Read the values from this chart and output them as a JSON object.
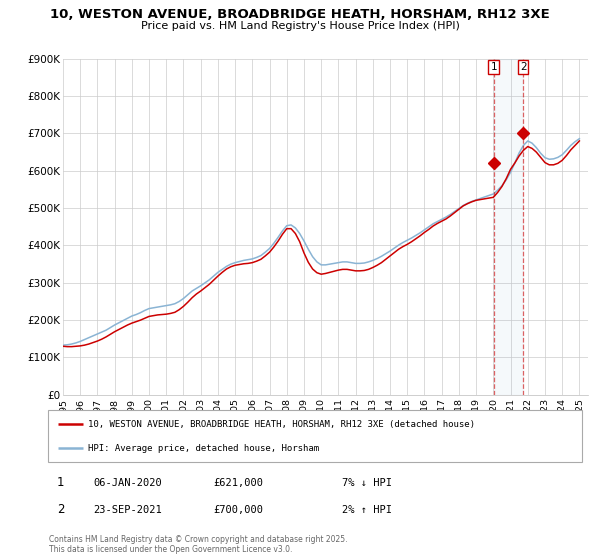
{
  "title1": "10, WESTON AVENUE, BROADBRIDGE HEATH, HORSHAM, RH12 3XE",
  "title2": "Price paid vs. HM Land Registry's House Price Index (HPI)",
  "legend_label_red": "10, WESTON AVENUE, BROADBRIDGE HEATH, HORSHAM, RH12 3XE (detached house)",
  "legend_label_blue": "HPI: Average price, detached house, Horsham",
  "ylim": [
    0,
    900000
  ],
  "xlim_start": 1995.0,
  "xlim_end": 2025.5,
  "ytick_values": [
    0,
    100000,
    200000,
    300000,
    400000,
    500000,
    600000,
    700000,
    800000,
    900000
  ],
  "ytick_labels": [
    "£0",
    "£100K",
    "£200K",
    "£300K",
    "£400K",
    "£500K",
    "£600K",
    "£700K",
    "£800K",
    "£900K"
  ],
  "xtick_values": [
    1995,
    1996,
    1997,
    1998,
    1999,
    2000,
    2001,
    2002,
    2003,
    2004,
    2005,
    2006,
    2007,
    2008,
    2009,
    2010,
    2011,
    2012,
    2013,
    2014,
    2015,
    2016,
    2017,
    2018,
    2019,
    2020,
    2021,
    2022,
    2023,
    2024,
    2025
  ],
  "marker1_x": 2020.019,
  "marker1_y": 621000,
  "marker1_label": "1",
  "marker1_date": "06-JAN-2020",
  "marker1_price": "£621,000",
  "marker1_hpi": "7% ↓ HPI",
  "marker2_x": 2021.728,
  "marker2_y": 700000,
  "marker2_label": "2",
  "marker2_date": "23-SEP-2021",
  "marker2_price": "£700,000",
  "marker2_hpi": "2% ↑ HPI",
  "red_color": "#cc0000",
  "blue_color": "#8ab4d4",
  "background_color": "#ffffff",
  "grid_color": "#cccccc",
  "footer": "Contains HM Land Registry data © Crown copyright and database right 2025.\nThis data is licensed under the Open Government Licence v3.0.",
  "hpi_x": [
    1995.0,
    1995.25,
    1995.5,
    1995.75,
    1996.0,
    1996.25,
    1996.5,
    1996.75,
    1997.0,
    1997.25,
    1997.5,
    1997.75,
    1998.0,
    1998.25,
    1998.5,
    1998.75,
    1999.0,
    1999.25,
    1999.5,
    1999.75,
    2000.0,
    2000.25,
    2000.5,
    2000.75,
    2001.0,
    2001.25,
    2001.5,
    2001.75,
    2002.0,
    2002.25,
    2002.5,
    2002.75,
    2003.0,
    2003.25,
    2003.5,
    2003.75,
    2004.0,
    2004.25,
    2004.5,
    2004.75,
    2005.0,
    2005.25,
    2005.5,
    2005.75,
    2006.0,
    2006.25,
    2006.5,
    2006.75,
    2007.0,
    2007.25,
    2007.5,
    2007.75,
    2008.0,
    2008.25,
    2008.5,
    2008.75,
    2009.0,
    2009.25,
    2009.5,
    2009.75,
    2010.0,
    2010.25,
    2010.5,
    2010.75,
    2011.0,
    2011.25,
    2011.5,
    2011.75,
    2012.0,
    2012.25,
    2012.5,
    2012.75,
    2013.0,
    2013.25,
    2013.5,
    2013.75,
    2014.0,
    2014.25,
    2014.5,
    2014.75,
    2015.0,
    2015.25,
    2015.5,
    2015.75,
    2016.0,
    2016.25,
    2016.5,
    2016.75,
    2017.0,
    2017.25,
    2017.5,
    2017.75,
    2018.0,
    2018.25,
    2018.5,
    2018.75,
    2019.0,
    2019.25,
    2019.5,
    2019.75,
    2020.0,
    2020.25,
    2020.5,
    2020.75,
    2021.0,
    2021.25,
    2021.5,
    2021.75,
    2022.0,
    2022.25,
    2022.5,
    2022.75,
    2023.0,
    2023.25,
    2023.5,
    2023.75,
    2024.0,
    2024.25,
    2024.5,
    2024.75,
    2025.0
  ],
  "hpi_y": [
    133000,
    134000,
    136000,
    139000,
    143000,
    148000,
    153000,
    158000,
    163000,
    168000,
    173000,
    180000,
    187000,
    193000,
    199000,
    205000,
    211000,
    215000,
    220000,
    226000,
    231000,
    233000,
    235000,
    237000,
    239000,
    241000,
    244000,
    250000,
    258000,
    268000,
    278000,
    285000,
    292000,
    300000,
    308000,
    318000,
    328000,
    336000,
    344000,
    350000,
    354000,
    357000,
    360000,
    362000,
    364000,
    368000,
    373000,
    382000,
    392000,
    406000,
    422000,
    439000,
    453000,
    455000,
    447000,
    432000,
    412000,
    390000,
    370000,
    356000,
    348000,
    348000,
    350000,
    352000,
    354000,
    356000,
    356000,
    354000,
    352000,
    352000,
    353000,
    356000,
    360000,
    365000,
    371000,
    378000,
    385000,
    393000,
    401000,
    408000,
    414000,
    420000,
    427000,
    434000,
    442000,
    450000,
    458000,
    464000,
    470000,
    476000,
    483000,
    491000,
    499000,
    507000,
    513000,
    518000,
    522000,
    526000,
    530000,
    534000,
    538000,
    548000,
    560000,
    576000,
    596000,
    621000,
    648000,
    668000,
    680000,
    674000,
    662000,
    647000,
    635000,
    631000,
    632000,
    636000,
    643000,
    655000,
    668000,
    678000,
    686000
  ],
  "price_x": [
    1995.0,
    1995.25,
    1995.5,
    1995.75,
    1996.0,
    1996.25,
    1996.5,
    1996.75,
    1997.0,
    1997.25,
    1997.5,
    1997.75,
    1998.0,
    1998.25,
    1998.5,
    1998.75,
    1999.0,
    1999.25,
    1999.5,
    1999.75,
    2000.0,
    2000.25,
    2000.5,
    2000.75,
    2001.0,
    2001.25,
    2001.5,
    2001.75,
    2002.0,
    2002.25,
    2002.5,
    2002.75,
    2003.0,
    2003.25,
    2003.5,
    2003.75,
    2004.0,
    2004.25,
    2004.5,
    2004.75,
    2005.0,
    2005.25,
    2005.5,
    2005.75,
    2006.0,
    2006.25,
    2006.5,
    2006.75,
    2007.0,
    2007.25,
    2007.5,
    2007.75,
    2008.0,
    2008.25,
    2008.5,
    2008.75,
    2009.0,
    2009.25,
    2009.5,
    2009.75,
    2010.0,
    2010.25,
    2010.5,
    2010.75,
    2011.0,
    2011.25,
    2011.5,
    2011.75,
    2012.0,
    2012.25,
    2012.5,
    2012.75,
    2013.0,
    2013.25,
    2013.5,
    2013.75,
    2014.0,
    2014.25,
    2014.5,
    2014.75,
    2015.0,
    2015.25,
    2015.5,
    2015.75,
    2016.0,
    2016.25,
    2016.5,
    2016.75,
    2017.0,
    2017.25,
    2017.5,
    2017.75,
    2018.0,
    2018.25,
    2018.5,
    2018.75,
    2019.0,
    2019.25,
    2019.5,
    2019.75,
    2020.0,
    2020.25,
    2020.5,
    2020.75,
    2021.0,
    2021.25,
    2021.5,
    2021.75,
    2022.0,
    2022.25,
    2022.5,
    2022.75,
    2023.0,
    2023.25,
    2023.5,
    2023.75,
    2024.0,
    2024.25,
    2024.5,
    2024.75,
    2025.0
  ],
  "price_y": [
    130000,
    129000,
    129000,
    130000,
    131000,
    133000,
    136000,
    140000,
    144000,
    149000,
    155000,
    162000,
    169000,
    175000,
    181000,
    187000,
    192000,
    196000,
    200000,
    205000,
    210000,
    212000,
    214000,
    215000,
    216000,
    218000,
    221000,
    228000,
    237000,
    248000,
    260000,
    270000,
    278000,
    287000,
    296000,
    307000,
    318000,
    328000,
    337000,
    343000,
    347000,
    349000,
    351000,
    352000,
    354000,
    358000,
    363000,
    372000,
    382000,
    396000,
    412000,
    430000,
    445000,
    445000,
    432000,
    410000,
    380000,
    355000,
    337000,
    327000,
    323000,
    325000,
    328000,
    331000,
    334000,
    336000,
    336000,
    334000,
    332000,
    332000,
    333000,
    336000,
    341000,
    347000,
    354000,
    363000,
    372000,
    381000,
    390000,
    397000,
    403000,
    410000,
    418000,
    426000,
    435000,
    443000,
    452000,
    459000,
    465000,
    471000,
    479000,
    488000,
    497000,
    506000,
    512000,
    517000,
    521000,
    523000,
    525000,
    527000,
    529000,
    542000,
    558000,
    579000,
    604000,
    621000,
    640000,
    655000,
    665000,
    660000,
    650000,
    636000,
    622000,
    616000,
    616000,
    620000,
    628000,
    641000,
    656000,
    668000,
    680000
  ]
}
